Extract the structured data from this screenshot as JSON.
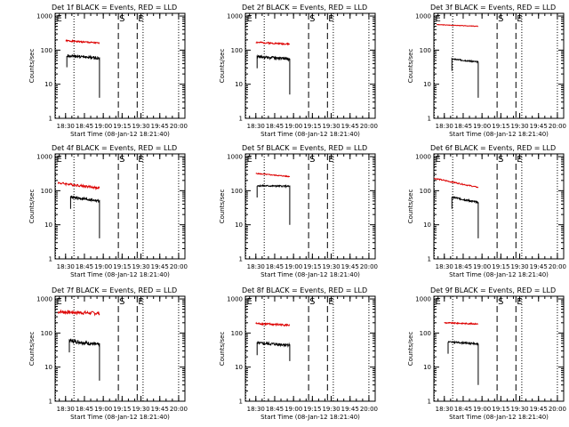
{
  "figure": {
    "panel_title_suffix": "BLACK = Events, RED = LLD",
    "y_axis_label": "Counts/sec",
    "x_axis_label": "Start Time (08-Jan-12 18:21:40)",
    "x_tick_labels": [
      "18:30",
      "18:45",
      "19:00",
      "19:15",
      "19:30",
      "19:45",
      "20:00"
    ],
    "y_tick_labels": [
      "1",
      "10",
      "100",
      "1000"
    ],
    "colors": {
      "events": "#000000",
      "lld": "#dd0000",
      "axes": "#000000"
    }
  },
  "chart_data": [
    {
      "type": "line",
      "title": "Det 1f",
      "xlim": [
        "18:21:40",
        "20:05:00"
      ],
      "ylim": [
        1,
        1200
      ],
      "yscale": "log",
      "grid": false,
      "markers": [
        {
          "label": "E",
          "time": "18:21:40",
          "style": "dotted"
        },
        {
          "label": "",
          "time": "18:36:40",
          "style": "dotted"
        },
        {
          "label": "S",
          "time": "19:12:00",
          "style": "dashed"
        },
        {
          "label": "E",
          "time": "19:27:00",
          "style": "dashed"
        },
        {
          "label": "",
          "time": "19:31:40",
          "style": "dotted"
        },
        {
          "label": "",
          "time": "20:00:00",
          "style": "dotted"
        }
      ],
      "series": [
        {
          "key": "lld",
          "start": "18:30:00",
          "end": "18:57:00",
          "y_start": 190,
          "y_end": 160,
          "noise": 0.05
        },
        {
          "key": "events",
          "start": "18:31:00",
          "end": "18:57:00",
          "y_start": 70,
          "y_end": 58,
          "noise": 0.09,
          "dip": 4
        }
      ]
    },
    {
      "type": "line",
      "title": "Det 2f",
      "xlim": [
        "18:21:40",
        "20:05:00"
      ],
      "ylim": [
        1,
        1200
      ],
      "yscale": "log",
      "grid": false,
      "markers": [
        {
          "label": "E",
          "time": "18:21:40",
          "style": "dotted"
        },
        {
          "label": "",
          "time": "18:36:40",
          "style": "dotted"
        },
        {
          "label": "S",
          "time": "19:12:00",
          "style": "dashed"
        },
        {
          "label": "E",
          "time": "19:27:00",
          "style": "dashed"
        },
        {
          "label": "",
          "time": "19:31:40",
          "style": "dotted"
        },
        {
          "label": "",
          "time": "20:00:00",
          "style": "dotted"
        }
      ],
      "series": [
        {
          "key": "lld",
          "start": "18:30:00",
          "end": "18:57:00",
          "y_start": 170,
          "y_end": 150,
          "noise": 0.05
        },
        {
          "key": "events",
          "start": "18:31:00",
          "end": "18:57:00",
          "y_start": 65,
          "y_end": 55,
          "noise": 0.09,
          "dip": 5
        }
      ]
    },
    {
      "type": "line",
      "title": "Det 3f",
      "xlim": [
        "18:21:40",
        "20:05:00"
      ],
      "ylim": [
        1,
        1200
      ],
      "yscale": "log",
      "grid": false,
      "markers": [
        {
          "label": "E",
          "time": "18:21:40",
          "style": "dotted"
        },
        {
          "label": "",
          "time": "18:36:40",
          "style": "dotted"
        },
        {
          "label": "S",
          "time": "19:12:00",
          "style": "dashed"
        },
        {
          "label": "E",
          "time": "19:27:00",
          "style": "dashed"
        },
        {
          "label": "",
          "time": "19:31:40",
          "style": "dotted"
        },
        {
          "label": "",
          "time": "20:00:00",
          "style": "dotted"
        }
      ],
      "series": [
        {
          "key": "lld",
          "start": "18:24:00",
          "end": "18:57:00",
          "y_start": 560,
          "y_end": 500,
          "noise": 0.02
        },
        {
          "key": "events",
          "start": "18:36:00",
          "end": "18:57:00",
          "y_start": 55,
          "y_end": 45,
          "noise": 0.04,
          "dip": 4
        }
      ]
    },
    {
      "type": "line",
      "title": "Det 4f",
      "xlim": [
        "18:21:40",
        "20:05:00"
      ],
      "ylim": [
        1,
        1200
      ],
      "yscale": "log",
      "grid": false,
      "markers": [
        {
          "label": "E",
          "time": "18:21:40",
          "style": "dotted"
        },
        {
          "label": "",
          "time": "18:36:40",
          "style": "dotted"
        },
        {
          "label": "S",
          "time": "19:12:00",
          "style": "dashed"
        },
        {
          "label": "E",
          "time": "19:27:00",
          "style": "dashed"
        },
        {
          "label": "",
          "time": "19:31:40",
          "style": "dotted"
        },
        {
          "label": "",
          "time": "20:00:00",
          "style": "dotted"
        }
      ],
      "series": [
        {
          "key": "lld",
          "start": "18:24:00",
          "end": "18:57:00",
          "y_start": 170,
          "y_end": 120,
          "noise": 0.08
        },
        {
          "key": "events",
          "start": "18:34:00",
          "end": "18:57:00",
          "y_start": 65,
          "y_end": 50,
          "noise": 0.09,
          "dip": 4
        }
      ]
    },
    {
      "type": "line",
      "title": "Det 5f",
      "xlim": [
        "18:21:40",
        "20:05:00"
      ],
      "ylim": [
        1,
        1200
      ],
      "yscale": "log",
      "grid": false,
      "markers": [
        {
          "label": "E",
          "time": "18:21:40",
          "style": "dotted"
        },
        {
          "label": "",
          "time": "18:36:40",
          "style": "dotted"
        },
        {
          "label": "S",
          "time": "19:12:00",
          "style": "dashed"
        },
        {
          "label": "E",
          "time": "19:27:00",
          "style": "dashed"
        },
        {
          "label": "",
          "time": "19:31:40",
          "style": "dotted"
        },
        {
          "label": "",
          "time": "20:00:00",
          "style": "dotted"
        }
      ],
      "series": [
        {
          "key": "lld",
          "start": "18:30:00",
          "end": "18:57:00",
          "y_start": 320,
          "y_end": 260,
          "noise": 0.03
        },
        {
          "key": "events",
          "start": "18:31:00",
          "end": "18:57:00",
          "y_start": 140,
          "y_end": 135,
          "noise": 0.05,
          "dip": 10
        }
      ]
    },
    {
      "type": "line",
      "title": "Det 6f",
      "xlim": [
        "18:21:40",
        "20:05:00"
      ],
      "ylim": [
        1,
        1200
      ],
      "yscale": "log",
      "grid": false,
      "markers": [
        {
          "label": "E",
          "time": "18:21:40",
          "style": "dotted"
        },
        {
          "label": "",
          "time": "18:36:40",
          "style": "dotted"
        },
        {
          "label": "S",
          "time": "19:12:00",
          "style": "dashed"
        },
        {
          "label": "E",
          "time": "19:27:00",
          "style": "dashed"
        },
        {
          "label": "",
          "time": "19:31:40",
          "style": "dotted"
        },
        {
          "label": "",
          "time": "20:00:00",
          "style": "dotted"
        }
      ],
      "series": [
        {
          "key": "lld",
          "start": "18:22:00",
          "end": "18:57:00",
          "y_start": 230,
          "y_end": 125,
          "noise": 0.04
        },
        {
          "key": "events",
          "start": "18:36:00",
          "end": "18:57:00",
          "y_start": 65,
          "y_end": 45,
          "noise": 0.06,
          "dip": 4
        }
      ]
    },
    {
      "type": "line",
      "title": "Det 7f",
      "xlim": [
        "18:21:40",
        "20:05:00"
      ],
      "ylim": [
        1,
        1200
      ],
      "yscale": "log",
      "grid": false,
      "markers": [
        {
          "label": "E",
          "time": "18:21:40",
          "style": "dotted"
        },
        {
          "label": "",
          "time": "18:36:40",
          "style": "dotted"
        },
        {
          "label": "S",
          "time": "19:12:00",
          "style": "dashed"
        },
        {
          "label": "E",
          "time": "19:27:00",
          "style": "dashed"
        },
        {
          "label": "",
          "time": "19:31:40",
          "style": "dotted"
        },
        {
          "label": "",
          "time": "20:00:00",
          "style": "dotted"
        }
      ],
      "series": [
        {
          "key": "lld",
          "start": "18:24:00",
          "end": "18:57:00",
          "y_start": 420,
          "y_end": 380,
          "noise": 0.12
        },
        {
          "key": "events",
          "start": "18:33:00",
          "end": "18:57:00",
          "y_start": 60,
          "y_end": 45,
          "noise": 0.12,
          "dip": 4
        }
      ]
    },
    {
      "type": "line",
      "title": "Det 8f",
      "xlim": [
        "18:21:40",
        "20:05:00"
      ],
      "ylim": [
        1,
        1200
      ],
      "yscale": "log",
      "grid": false,
      "markers": [
        {
          "label": "E",
          "time": "18:21:40",
          "style": "dotted"
        },
        {
          "label": "",
          "time": "18:36:40",
          "style": "dotted"
        },
        {
          "label": "S",
          "time": "19:12:00",
          "style": "dashed"
        },
        {
          "label": "E",
          "time": "19:27:00",
          "style": "dashed"
        },
        {
          "label": "",
          "time": "19:31:40",
          "style": "dotted"
        },
        {
          "label": "",
          "time": "20:00:00",
          "style": "dotted"
        }
      ],
      "series": [
        {
          "key": "lld",
          "start": "18:30:00",
          "end": "18:57:00",
          "y_start": 190,
          "y_end": 170,
          "noise": 0.06
        },
        {
          "key": "events",
          "start": "18:31:00",
          "end": "18:57:00",
          "y_start": 50,
          "y_end": 45,
          "noise": 0.1,
          "dip": 15
        }
      ]
    },
    {
      "type": "line",
      "title": "Det 9f",
      "xlim": [
        "18:21:40",
        "20:05:00"
      ],
      "ylim": [
        1,
        1200
      ],
      "yscale": "log",
      "grid": false,
      "markers": [
        {
          "label": "E",
          "time": "18:21:40",
          "style": "dotted"
        },
        {
          "label": "",
          "time": "18:36:40",
          "style": "dotted"
        },
        {
          "label": "S",
          "time": "19:12:00",
          "style": "dashed"
        },
        {
          "label": "E",
          "time": "19:27:00",
          "style": "dashed"
        },
        {
          "label": "",
          "time": "19:31:40",
          "style": "dotted"
        },
        {
          "label": "",
          "time": "20:00:00",
          "style": "dotted"
        }
      ],
      "series": [
        {
          "key": "lld",
          "start": "18:30:00",
          "end": "18:57:00",
          "y_start": 200,
          "y_end": 185,
          "noise": 0.04
        },
        {
          "key": "events",
          "start": "18:33:00",
          "end": "18:57:00",
          "y_start": 55,
          "y_end": 48,
          "noise": 0.05,
          "dip": 3
        }
      ]
    }
  ]
}
